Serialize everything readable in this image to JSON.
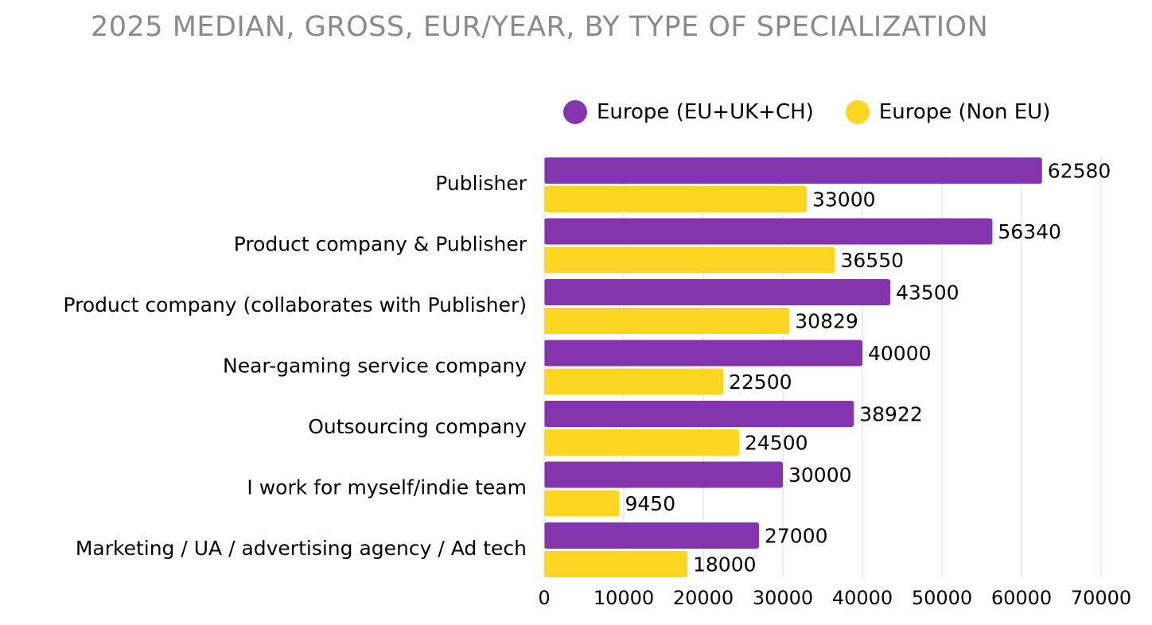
{
  "chart_data": {
    "type": "bar",
    "orientation": "horizontal",
    "title": "2025 MEDIAN, GROSS, EUR/YEAR, BY TYPE OF SPECIALIZATION",
    "categories": [
      "Publisher",
      "Product company & Publisher",
      "Product company (collaborates with Publisher)",
      "Near-gaming service company",
      "Outsourcing company",
      "I work for myself/indie team",
      "Marketing / UA / advertising agency / Ad tech"
    ],
    "series": [
      {
        "name": "Europe (EU+UK+CH)",
        "color": "#8434ad",
        "values": [
          62580,
          56340,
          43500,
          40000,
          38922,
          30000,
          27000
        ]
      },
      {
        "name": "Europe (Non EU)",
        "color": "#fdd523",
        "values": [
          33000,
          36550,
          30829,
          22500,
          24500,
          9450,
          18000
        ]
      }
    ],
    "xlim": [
      0,
      70000
    ],
    "xticks": [
      "0",
      "10000",
      "20000",
      "30000",
      "40000",
      "50000",
      "60000",
      "70000"
    ],
    "xlabel": "",
    "ylabel": "",
    "grid": true,
    "legend_position": "top"
  }
}
